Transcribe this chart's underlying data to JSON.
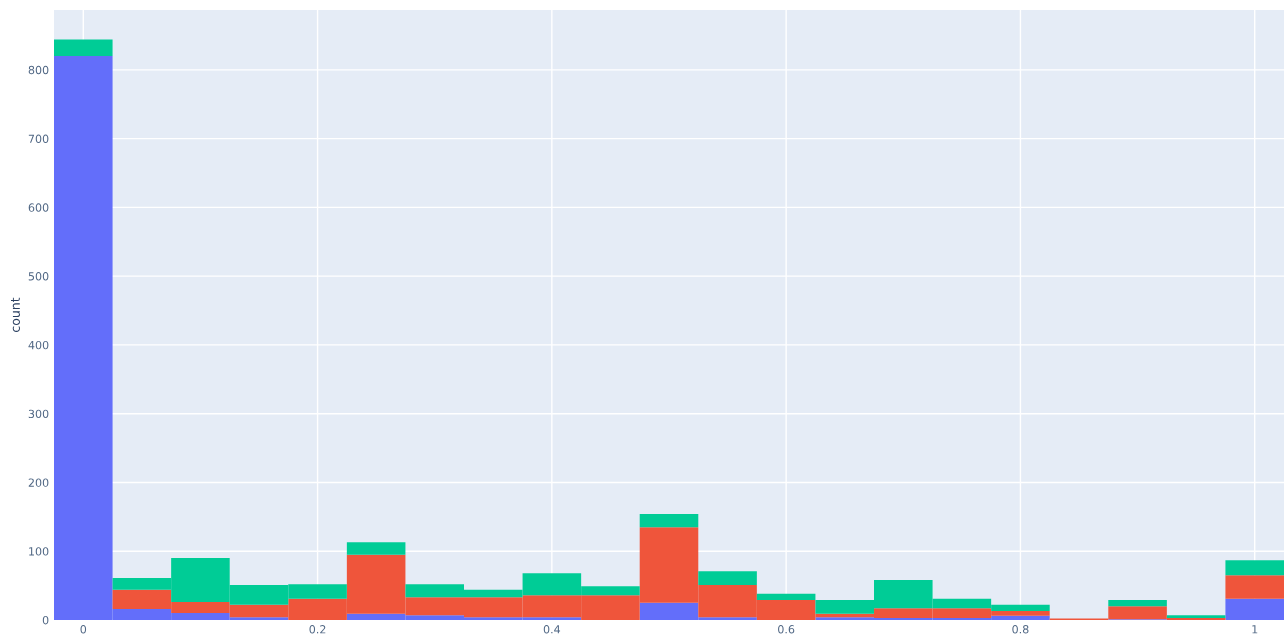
{
  "chart_data": {
    "type": "bar",
    "ylabel": "count",
    "stacked": true,
    "x": [
      0,
      0.05,
      0.1,
      0.15,
      0.2,
      0.25,
      0.3,
      0.35,
      0.4,
      0.45,
      0.5,
      0.55,
      0.6,
      0.65,
      0.7,
      0.75,
      0.8,
      0.85,
      0.9,
      0.95,
      1
    ],
    "series": [
      {
        "color": "#636efa",
        "values": [
          820,
          16,
          10,
          4,
          0,
          9,
          7,
          4,
          4,
          0,
          25,
          4,
          0,
          4,
          3,
          3,
          6,
          0,
          1,
          0,
          31
        ]
      },
      {
        "color": "#ef553b",
        "values": [
          0,
          28,
          16,
          18,
          31,
          86,
          26,
          29,
          32,
          36,
          110,
          47,
          29,
          5,
          14,
          14,
          7,
          2,
          19,
          3,
          34
        ]
      },
      {
        "color": "#00cc96",
        "values": [
          24,
          17,
          64,
          29,
          21,
          18,
          19,
          11,
          32,
          13,
          19,
          20,
          9,
          20,
          41,
          14,
          9,
          null,
          9,
          4,
          22
        ]
      }
    ],
    "xlim": [
      -0.025,
      1.025
    ],
    "xticks": [
      0,
      0.2,
      0.4,
      0.6,
      0.8,
      1
    ],
    "ylim": [
      0,
      887
    ],
    "yticks": [
      0,
      100,
      200,
      300,
      400,
      500,
      600,
      700,
      800
    ],
    "grid": true
  }
}
